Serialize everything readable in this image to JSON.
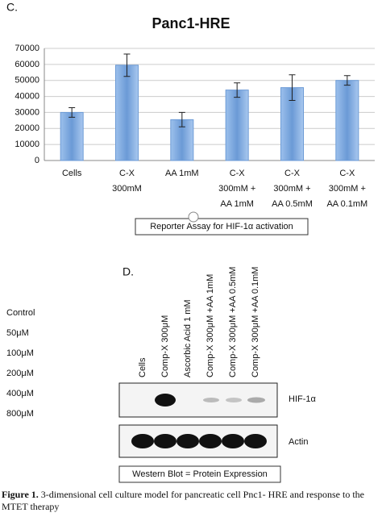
{
  "panel_c": {
    "label": "C.",
    "caption_box": "Reporter Assay for HIF-1α activation"
  },
  "chart_data": {
    "type": "bar",
    "title": "Panc1-HRE",
    "categories": [
      [
        "Cells"
      ],
      [
        "C-X",
        "300mM"
      ],
      [
        "AA 1mM"
      ],
      [
        "C-X",
        "300mM +",
        "AA 1mM"
      ],
      [
        "C-X",
        "300mM +",
        "AA 0.5mM"
      ],
      [
        "C-X",
        "300mM +",
        "AA 0.1mM"
      ]
    ],
    "values": [
      30000,
      59500,
      25500,
      44000,
      45500,
      50000
    ],
    "errors": [
      3000,
      7000,
      4500,
      4500,
      8000,
      3000
    ],
    "color": "#6b9ad6",
    "ylim": [
      0,
      70000
    ],
    "yticks": [
      0,
      10000,
      20000,
      30000,
      40000,
      50000,
      60000,
      70000
    ],
    "grid": true
  },
  "panel_d": {
    "label": "D.",
    "doses": [
      "Control",
      "50μM",
      "100μM",
      "200μM",
      "400μM",
      "800μM"
    ],
    "lanes": [
      "Cells",
      "Comp-X 300μM",
      "Ascorbic Acid 1 mM",
      "Comp-X 300μM +AA 1mM",
      "Comp-X 300μM +AA 0.5mM",
      "Comp-X 300μM +AA 0.1mM"
    ],
    "blot_labels": [
      "HIF-1α",
      "Actin"
    ],
    "caption_box": "Western Blot = Protein Expression"
  },
  "figure_caption": {
    "label": "Figure 1.",
    "text": " 3-dimensional cell culture model for pancreatic cell Pnc1- HRE and response to the MTET therapy"
  }
}
